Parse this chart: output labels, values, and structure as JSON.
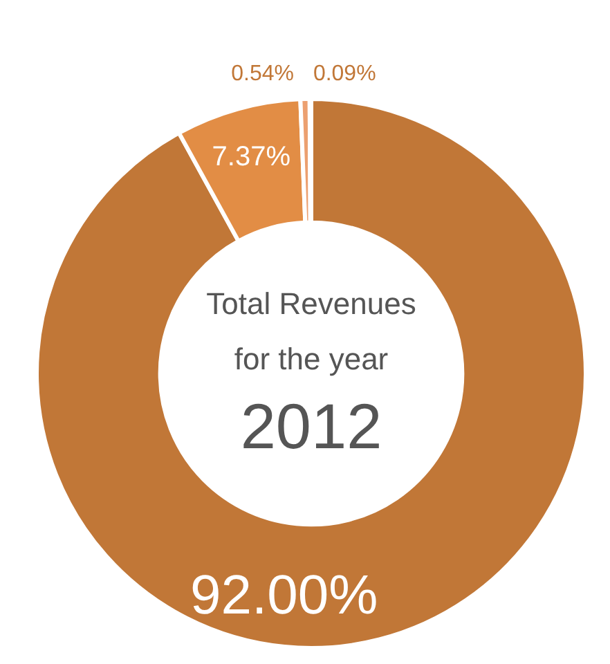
{
  "chart_data": {
    "type": "donut",
    "title": "Total Revenues for the year",
    "subtitle": "2012",
    "categories": [
      null,
      null,
      null,
      null
    ],
    "values": [
      92.0,
      7.37,
      0.54,
      0.09
    ],
    "colors": [
      "#c17737",
      "#e28d45",
      "#eca070",
      "#e9a77c"
    ],
    "value_labels": [
      "92.00%",
      "7.37%",
      "0.54%",
      "0.09%"
    ],
    "legend": false
  }
}
